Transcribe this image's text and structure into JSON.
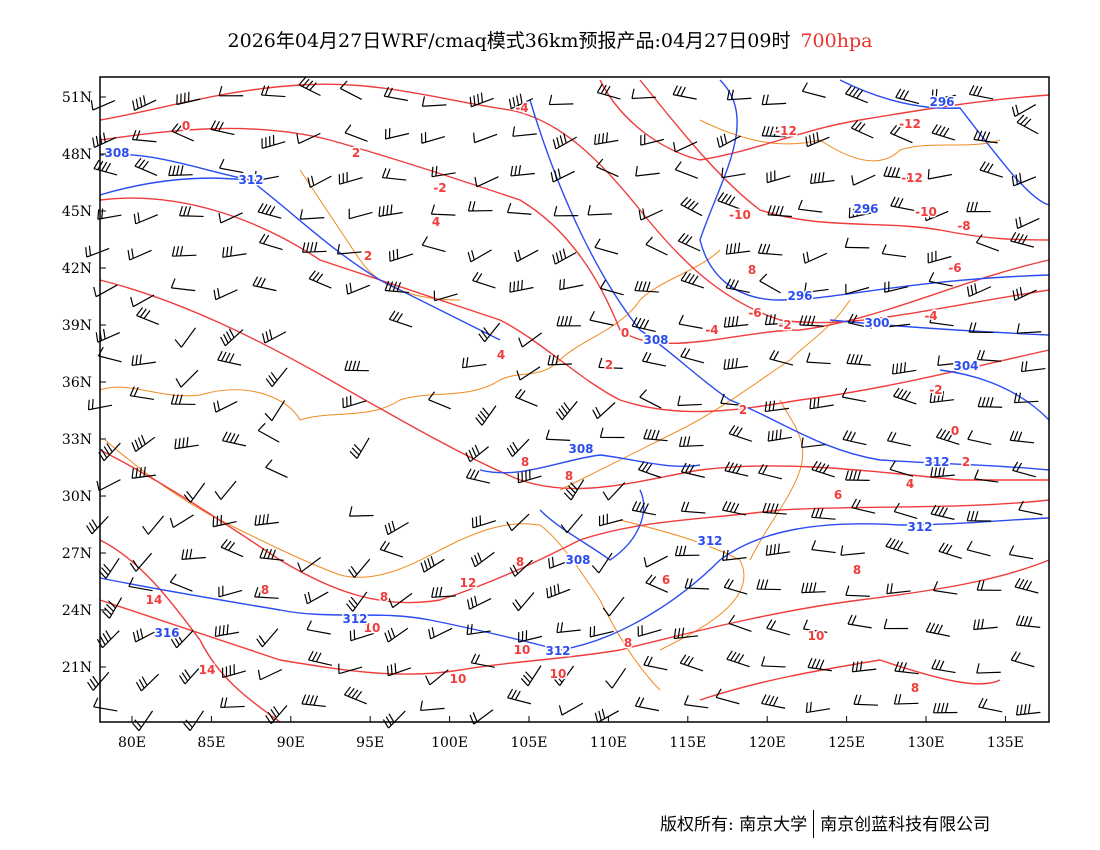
{
  "title": {
    "main": "2026年04月27日WRF/cmaq模式36km预报产品:04月27日09时",
    "level": "700hpa"
  },
  "axes": {
    "lon_ticks": [
      "80E",
      "85E",
      "90E",
      "95E",
      "100E",
      "105E",
      "110E",
      "115E",
      "120E",
      "125E",
      "130E",
      "135E"
    ],
    "lat_ticks": [
      "51N",
      "48N",
      "45N",
      "42N",
      "39N",
      "36N",
      "33N",
      "30N",
      "27N",
      "24N",
      "21N"
    ]
  },
  "temperature_labels": [
    "-4",
    "0",
    "2",
    "-12",
    "-12",
    "-12",
    "-2",
    "4",
    "-10",
    "-10",
    "-8",
    "2",
    "-6",
    "8",
    "-4",
    "-6",
    "-2",
    "-4",
    "0",
    "4",
    "2",
    "-2",
    "2",
    "0",
    "8",
    "8",
    "4",
    "6",
    "8",
    "8",
    "12",
    "6",
    "8",
    "14",
    "8",
    "10",
    "10",
    "8",
    "10",
    "14",
    "10",
    "10",
    "8",
    "2"
  ],
  "height_labels": [
    "308",
    "312",
    "296",
    "296",
    "296",
    "300",
    "308",
    "304",
    "308",
    "312",
    "312",
    "312",
    "308",
    "312",
    "316",
    "312"
  ],
  "colors": {
    "temperature": "#f03c3c",
    "height": "#2a4cf0",
    "border": "#f08a20",
    "wind": "#000000"
  },
  "footer": {
    "left": "版权所有: 南京大学",
    "right": "南京创蓝科技有限公司"
  }
}
